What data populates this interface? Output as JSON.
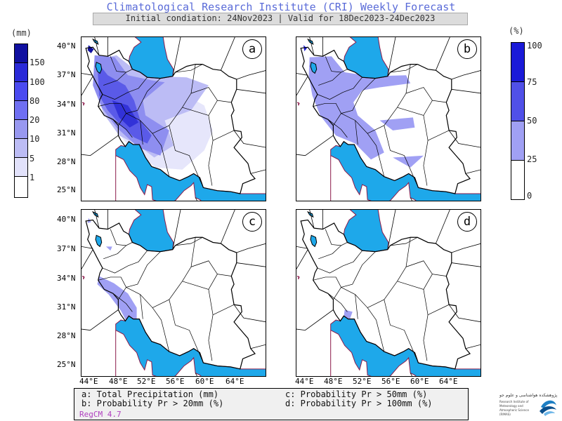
{
  "header": {
    "title": "Climatological Research Institute (CRI) Weekly Forecast",
    "subtitle": "Initial condiation: 24Nov2023 | Valid for 18Dec2023-24Dec2023"
  },
  "legend_left": {
    "unit": "(mm)",
    "labels": [
      "150",
      "100",
      "80",
      "20",
      "10",
      "5",
      "1"
    ],
    "colors": [
      "#1010a0",
      "#2a2ad8",
      "#4a4af0",
      "#6f6ff2",
      "#9898f0",
      "#bcbcf5",
      "#e2e2fb",
      "#ffffff"
    ]
  },
  "legend_right": {
    "unit": "(%)",
    "labels": [
      "100",
      "75",
      "50",
      "25",
      "0"
    ],
    "colors": [
      "#1a1ad8",
      "#5050e8",
      "#a0a0f4",
      "#ffffff"
    ]
  },
  "map": {
    "lat_ticks": [
      "40°N",
      "37°N",
      "34°N",
      "31°N",
      "28°N",
      "25°N"
    ],
    "lon_ticks": [
      "44°E",
      "48°E",
      "52°E",
      "56°E",
      "60°E",
      "64°E"
    ],
    "water_color": "#1ea8ea",
    "border_color": "#000000",
    "coast_color": "#8b1a4a"
  },
  "panels": [
    {
      "label": "a",
      "description_key": "a"
    },
    {
      "label": "b",
      "description_key": "b"
    },
    {
      "label": "c",
      "description_key": "c"
    },
    {
      "label": "d",
      "description_key": "d"
    }
  ],
  "footer": {
    "line_a": "a: Total Precipitation (mm)",
    "line_b": "b: Probability Pr > 20mm (%)",
    "line_c": "c: Probability Pr > 50mm (%)",
    "line_d": "d: Probability Pr > 100mm (%)",
    "model": "RegCM 4.7"
  },
  "logo": {
    "title": "پژوهشکده هواشناسی و علوم جو",
    "subtitle": "Research Institute of Meteorology and Atmospheric Science (RIMAS)"
  }
}
